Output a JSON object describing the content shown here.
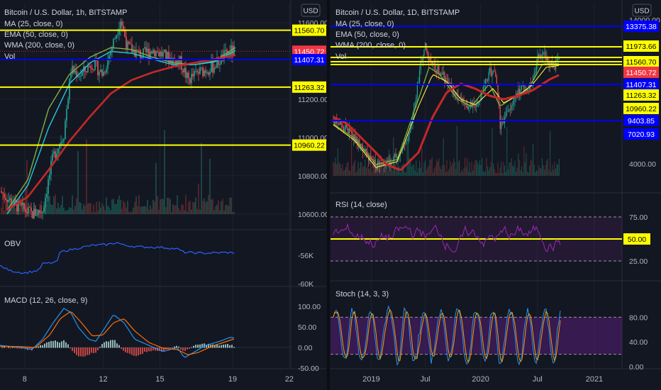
{
  "colors": {
    "bg": "#131722",
    "grid": "#1e2230",
    "text": "#d1d4dc",
    "axis_text": "#b2b5be",
    "yellow": "#ffff00",
    "blue": "#0000ff",
    "red": "#f23645",
    "ma": "#7cb342",
    "ema": "#26c6da",
    "wma": "#c62828",
    "rsi": "#9c27b0",
    "stoch_k": "#2196f3",
    "stoch_d": "#ff9800",
    "macd": "#2196f3",
    "signal": "#ff6d00",
    "up": "#26a69a",
    "down": "#ef5350",
    "obv": "#2962ff"
  },
  "left": {
    "title": "Bitcoin / U.S. Dollar, 1h, BITSTAMP",
    "currency": "USD",
    "indicators": [
      "MA (25, close, 0)",
      "EMA (50, close, 0)",
      "WMA (200, close, 0)",
      "Vol"
    ],
    "price_ticks": [
      {
        "label": "11600.00",
        "value": 11600
      },
      {
        "label": "11200.00",
        "value": 11200
      },
      {
        "label": "11000.00",
        "value": 11000
      },
      {
        "label": "10800.00",
        "value": 10800
      },
      {
        "label": "10600.00",
        "value": 10600
      }
    ],
    "price_levels": [
      {
        "label": "11560.70",
        "value": 11560.7,
        "kind": "yellow"
      },
      {
        "label": "11450.72",
        "value": 11450.72,
        "kind": "red"
      },
      {
        "label": "11407.31",
        "value": 11407.31,
        "kind": "blue"
      },
      {
        "label": "11263.32",
        "value": 11263.32,
        "kind": "yellow"
      },
      {
        "label": "10960.22",
        "value": 10960.22,
        "kind": "yellow"
      }
    ],
    "obv": {
      "title": "OBV",
      "ticks": [
        {
          "label": "-56K",
          "value": -56
        },
        {
          "label": "-60K",
          "value": -60
        }
      ]
    },
    "macd": {
      "title": "MACD (12, 26, close, 9)",
      "ticks": [
        {
          "label": "100.00",
          "value": 100
        },
        {
          "label": "50.00",
          "value": 50
        },
        {
          "label": "0.00",
          "value": 0
        },
        {
          "label": "-50.00",
          "value": -50
        }
      ]
    },
    "x_ticks": [
      {
        "label": "8",
        "pos": 0.085
      },
      {
        "label": "12",
        "pos": 0.355
      },
      {
        "label": "15",
        "pos": 0.55
      },
      {
        "label": "19",
        "pos": 0.8
      },
      {
        "label": "22",
        "pos": 0.995
      }
    ]
  },
  "right": {
    "title": "Bitcoin / U.S. Dollar, 1D, BITSTAMP",
    "currency": "USD",
    "indicators": [
      "MA (25, close, 0)",
      "EMA (50, close, 0)",
      "WMA (200, close, 0)",
      "Vol"
    ],
    "price_ticks": [
      {
        "label": "14000.00",
        "value": 14000
      },
      {
        "label": "4000.00",
        "value": 4000
      }
    ],
    "price_levels": [
      {
        "label": "13375.38",
        "value": 13375.38,
        "kind": "blue"
      },
      {
        "label": "11973.66",
        "value": 11973.66,
        "kind": "yellow"
      },
      {
        "label": "11560.70",
        "value": 11560.7,
        "kind": "yellow"
      },
      {
        "label": "11450.72",
        "value": 11450.72,
        "kind": "red"
      },
      {
        "label": "11407.31",
        "value": 11407.31,
        "kind": "blue"
      },
      {
        "label": "11263.32",
        "value": 11263.32,
        "kind": "yellow"
      },
      {
        "label": "10960.22",
        "value": 10960.22,
        "kind": "yellow"
      },
      {
        "label": "9403.85",
        "value": 9403.85,
        "kind": "blue"
      },
      {
        "label": "7020.93",
        "value": 7020.93,
        "kind": "blue"
      }
    ],
    "rsi": {
      "title": "RSI (14, close)",
      "ticks": [
        {
          "label": "75.00",
          "value": 75
        },
        {
          "label": "25.00",
          "value": 25
        }
      ],
      "level": {
        "label": "50.00",
        "value": 50
      }
    },
    "stoch": {
      "title": "Stoch (14, 3, 3)",
      "ticks": [
        {
          "label": "80.00",
          "value": 80
        },
        {
          "label": "40.00",
          "value": 40
        },
        {
          "label": "0.00",
          "value": 0
        }
      ]
    },
    "x_ticks": [
      {
        "label": "2019",
        "pos": 0.14
      },
      {
        "label": "Jul",
        "pos": 0.325
      },
      {
        "label": "2020",
        "pos": 0.515
      },
      {
        "label": "Jul",
        "pos": 0.71
      },
      {
        "label": "2021",
        "pos": 0.905
      }
    ]
  },
  "chart_data": [
    {
      "type": "line",
      "title": "Bitcoin / U.S. Dollar, 1h, BITSTAMP",
      "ylabel": "USD",
      "ylim": [
        10540,
        11700
      ],
      "x": [
        8,
        9,
        10,
        11,
        12,
        13,
        14,
        15,
        16,
        17,
        18,
        19
      ],
      "series": [
        {
          "name": "MA (25, close, 0)",
          "values": [
            10620,
            10780,
            11150,
            11330,
            11420,
            11470,
            11460,
            11420,
            11390,
            11380,
            11400,
            11470
          ]
        },
        {
          "name": "EMA (50, close, 0)",
          "values": [
            10600,
            10750,
            11050,
            11280,
            11390,
            11450,
            11440,
            11410,
            11380,
            11380,
            11395,
            11455
          ]
        },
        {
          "name": "WMA (200, close, 0)",
          "values": [
            10620,
            10690,
            10830,
            10980,
            11110,
            11230,
            11300,
            11340,
            11370,
            11390,
            11410,
            11430
          ]
        }
      ]
    },
    {
      "type": "line",
      "title": "Bitcoin / U.S. Dollar, 1D, BITSTAMP",
      "ylabel": "USD",
      "x": [
        "2018-10",
        "2019-01",
        "2019-04",
        "2019-07",
        "2019-10",
        "2020-01",
        "2020-04",
        "2020-07",
        "2020-10"
      ],
      "series": [
        {
          "name": "MA (25, close, 0)",
          "values": [
            6400,
            3700,
            5000,
            11000,
            8300,
            8000,
            7000,
            9500,
            11300
          ]
        },
        {
          "name": "EMA (50, close, 0)",
          "values": [
            6500,
            3900,
            4800,
            10300,
            8600,
            8300,
            7200,
            9300,
            11100
          ]
        },
        {
          "name": "WMA (200, close, 0)",
          "values": [
            6800,
            5200,
            3900,
            7500,
            9200,
            8300,
            8000,
            8800,
            10700
          ]
        }
      ]
    }
  ]
}
